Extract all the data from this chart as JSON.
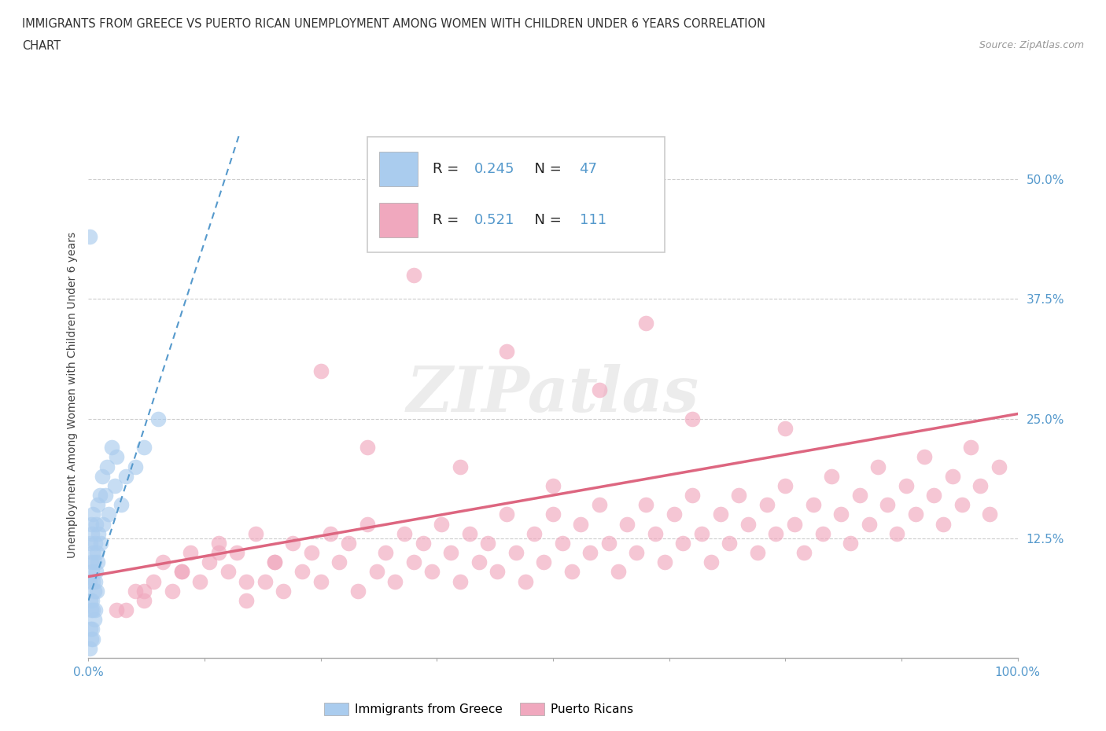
{
  "title_line1": "IMMIGRANTS FROM GREECE VS PUERTO RICAN UNEMPLOYMENT AMONG WOMEN WITH CHILDREN UNDER 6 YEARS CORRELATION",
  "title_line2": "CHART",
  "source": "Source: ZipAtlas.com",
  "ylabel": "Unemployment Among Women with Children Under 6 years",
  "r_blue": 0.245,
  "n_blue": 47,
  "r_pink": 0.521,
  "n_pink": 111,
  "blue_color": "#aaccee",
  "pink_color": "#f0a8be",
  "blue_line_color": "#5599cc",
  "pink_line_color": "#dd6680",
  "tick_color": "#5599cc",
  "xlim": [
    0.0,
    1.0
  ],
  "ylim": [
    0.0,
    0.55
  ],
  "ytick_positions": [
    0.125,
    0.25,
    0.375,
    0.5
  ],
  "ytick_labels": [
    "12.5%",
    "25.0%",
    "37.5%",
    "50.0%"
  ],
  "watermark": "ZIPatlas",
  "legend_label_blue": "Immigrants from Greece",
  "legend_label_pink": "Puerto Ricans",
  "background_color": "#ffffff",
  "grid_color": "#cccccc",
  "blue_scatter_x": [
    0.001,
    0.001,
    0.002,
    0.002,
    0.002,
    0.003,
    0.003,
    0.003,
    0.003,
    0.004,
    0.004,
    0.004,
    0.004,
    0.005,
    0.005,
    0.005,
    0.005,
    0.005,
    0.006,
    0.006,
    0.006,
    0.007,
    0.007,
    0.007,
    0.008,
    0.008,
    0.009,
    0.009,
    0.01,
    0.01,
    0.011,
    0.012,
    0.013,
    0.015,
    0.016,
    0.018,
    0.02,
    0.022,
    0.025,
    0.028,
    0.03,
    0.035,
    0.04,
    0.05,
    0.06,
    0.075,
    0.001
  ],
  "blue_scatter_y": [
    0.44,
    0.08,
    0.12,
    0.06,
    0.03,
    0.1,
    0.14,
    0.05,
    0.02,
    0.09,
    0.13,
    0.06,
    0.03,
    0.11,
    0.08,
    0.05,
    0.02,
    0.15,
    0.1,
    0.07,
    0.04,
    0.12,
    0.08,
    0.05,
    0.14,
    0.09,
    0.11,
    0.07,
    0.16,
    0.1,
    0.13,
    0.17,
    0.12,
    0.19,
    0.14,
    0.17,
    0.2,
    0.15,
    0.22,
    0.18,
    0.21,
    0.16,
    0.19,
    0.2,
    0.22,
    0.25,
    0.01
  ],
  "pink_scatter_x": [
    0.04,
    0.05,
    0.06,
    0.07,
    0.08,
    0.09,
    0.1,
    0.11,
    0.12,
    0.13,
    0.14,
    0.15,
    0.16,
    0.17,
    0.18,
    0.19,
    0.2,
    0.21,
    0.22,
    0.23,
    0.24,
    0.25,
    0.26,
    0.27,
    0.28,
    0.29,
    0.3,
    0.31,
    0.32,
    0.33,
    0.34,
    0.35,
    0.36,
    0.37,
    0.38,
    0.39,
    0.4,
    0.41,
    0.42,
    0.43,
    0.44,
    0.45,
    0.46,
    0.47,
    0.48,
    0.49,
    0.5,
    0.51,
    0.52,
    0.53,
    0.54,
    0.55,
    0.56,
    0.57,
    0.58,
    0.59,
    0.6,
    0.61,
    0.62,
    0.63,
    0.64,
    0.65,
    0.66,
    0.67,
    0.68,
    0.69,
    0.7,
    0.71,
    0.72,
    0.73,
    0.74,
    0.75,
    0.76,
    0.77,
    0.78,
    0.79,
    0.8,
    0.81,
    0.82,
    0.83,
    0.84,
    0.85,
    0.86,
    0.87,
    0.88,
    0.89,
    0.9,
    0.91,
    0.92,
    0.93,
    0.94,
    0.95,
    0.96,
    0.97,
    0.98,
    0.03,
    0.06,
    0.1,
    0.14,
    0.17,
    0.2,
    0.25,
    0.3,
    0.35,
    0.4,
    0.45,
    0.5,
    0.55,
    0.6,
    0.65,
    0.75
  ],
  "pink_scatter_y": [
    0.05,
    0.07,
    0.06,
    0.08,
    0.1,
    0.07,
    0.09,
    0.11,
    0.08,
    0.1,
    0.12,
    0.09,
    0.11,
    0.06,
    0.13,
    0.08,
    0.1,
    0.07,
    0.12,
    0.09,
    0.11,
    0.08,
    0.13,
    0.1,
    0.12,
    0.07,
    0.14,
    0.09,
    0.11,
    0.08,
    0.13,
    0.1,
    0.12,
    0.09,
    0.14,
    0.11,
    0.08,
    0.13,
    0.1,
    0.12,
    0.09,
    0.15,
    0.11,
    0.08,
    0.13,
    0.1,
    0.15,
    0.12,
    0.09,
    0.14,
    0.11,
    0.16,
    0.12,
    0.09,
    0.14,
    0.11,
    0.16,
    0.13,
    0.1,
    0.15,
    0.12,
    0.17,
    0.13,
    0.1,
    0.15,
    0.12,
    0.17,
    0.14,
    0.11,
    0.16,
    0.13,
    0.18,
    0.14,
    0.11,
    0.16,
    0.13,
    0.19,
    0.15,
    0.12,
    0.17,
    0.14,
    0.2,
    0.16,
    0.13,
    0.18,
    0.15,
    0.21,
    0.17,
    0.14,
    0.19,
    0.16,
    0.22,
    0.18,
    0.15,
    0.2,
    0.05,
    0.07,
    0.09,
    0.11,
    0.08,
    0.1,
    0.3,
    0.22,
    0.4,
    0.2,
    0.32,
    0.18,
    0.28,
    0.35,
    0.25,
    0.24
  ],
  "blue_trend_x": [
    0.0,
    1.0
  ],
  "blue_trend_slope": 3.0,
  "blue_trend_intercept": 0.06,
  "pink_trend_x": [
    0.0,
    1.0
  ],
  "pink_trend_slope": 0.17,
  "pink_trend_intercept": 0.085
}
